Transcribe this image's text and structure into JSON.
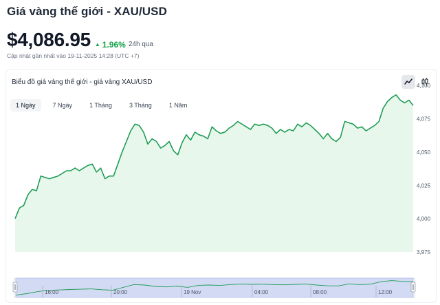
{
  "page": {
    "title": "Giá vàng thế giới - XAU/USD",
    "price": "$4,086.95",
    "change_arrow": "▲",
    "change_pct": "1.96%",
    "change_period": "24h qua",
    "updated": "Cập nhật gần nhất vào 19-11-2025 14:28 (UTC +7)"
  },
  "chart_card": {
    "title": "Biểu đồ giá vàng thế giới - giá vàng XAU/USD",
    "view_buttons": [
      {
        "icon": "line-chart-icon",
        "active": true
      },
      {
        "icon": "candlestick-icon",
        "active": false
      }
    ],
    "tabs": [
      {
        "label": "1 Ngày",
        "active": true
      },
      {
        "label": "7 Ngày",
        "active": false
      },
      {
        "label": "1 Tháng",
        "active": false
      },
      {
        "label": "3 Tháng",
        "active": false
      },
      {
        "label": "1 Năm",
        "active": false
      }
    ]
  },
  "colors": {
    "line": "#1f9d55",
    "area": "#e8f7ec",
    "navigator_fill": "#c7d2f3",
    "positive": "#16a34a"
  },
  "chart_data": {
    "type": "area",
    "title": "",
    "xlabel": "",
    "ylabel": "",
    "ylim": [
      3975,
      4112
    ],
    "y_ticks": [
      "3,975",
      "4,000",
      "4,025",
      "4,050",
      "4,075",
      "4,100"
    ],
    "navigator_x_labels": [
      "16:00",
      "20:00",
      "19 Nov",
      "04:00",
      "08:00",
      "12:00"
    ],
    "grid": false,
    "series": [
      {
        "values": [
          4000,
          4008,
          4010,
          4018,
          4022,
          4021,
          4032,
          4031,
          4030,
          4031,
          4032,
          4034,
          4036,
          4036,
          4038,
          4036,
          4038,
          4040,
          4041,
          4035,
          4038,
          4030,
          4032,
          4032,
          4041,
          4050,
          4058,
          4066,
          4071,
          4070,
          4065,
          4056,
          4060,
          4058,
          4053,
          4055,
          4058,
          4051,
          4048,
          4057,
          4063,
          4059,
          4065,
          4063,
          4062,
          4060,
          4069,
          4066,
          4064,
          4065,
          4068,
          4070,
          4073,
          4071,
          4069,
          4067,
          4071,
          4070,
          4071,
          4070,
          4068,
          4064,
          4067,
          4065,
          4067,
          4066,
          4071,
          4069,
          4072,
          4070,
          4067,
          4064,
          4060,
          4064,
          4060,
          4058,
          4061,
          4073,
          4072,
          4071,
          4068,
          4069,
          4066,
          4068,
          4070,
          4073,
          4083,
          4088,
          4091,
          4093,
          4089,
          4087,
          4089,
          4085
        ]
      }
    ],
    "navigator": {
      "values": [
        4000,
        4010,
        4022,
        4031,
        4033,
        4036,
        4038,
        4040,
        4035,
        4032,
        4050,
        4068,
        4065,
        4056,
        4053,
        4058,
        4050,
        4063,
        4065,
        4062,
        4068,
        4071,
        4069,
        4070,
        4068,
        4066,
        4069,
        4071,
        4065,
        4060,
        4059,
        4072,
        4068,
        4070,
        4086,
        4093,
        4088,
        4086
      ]
    }
  }
}
